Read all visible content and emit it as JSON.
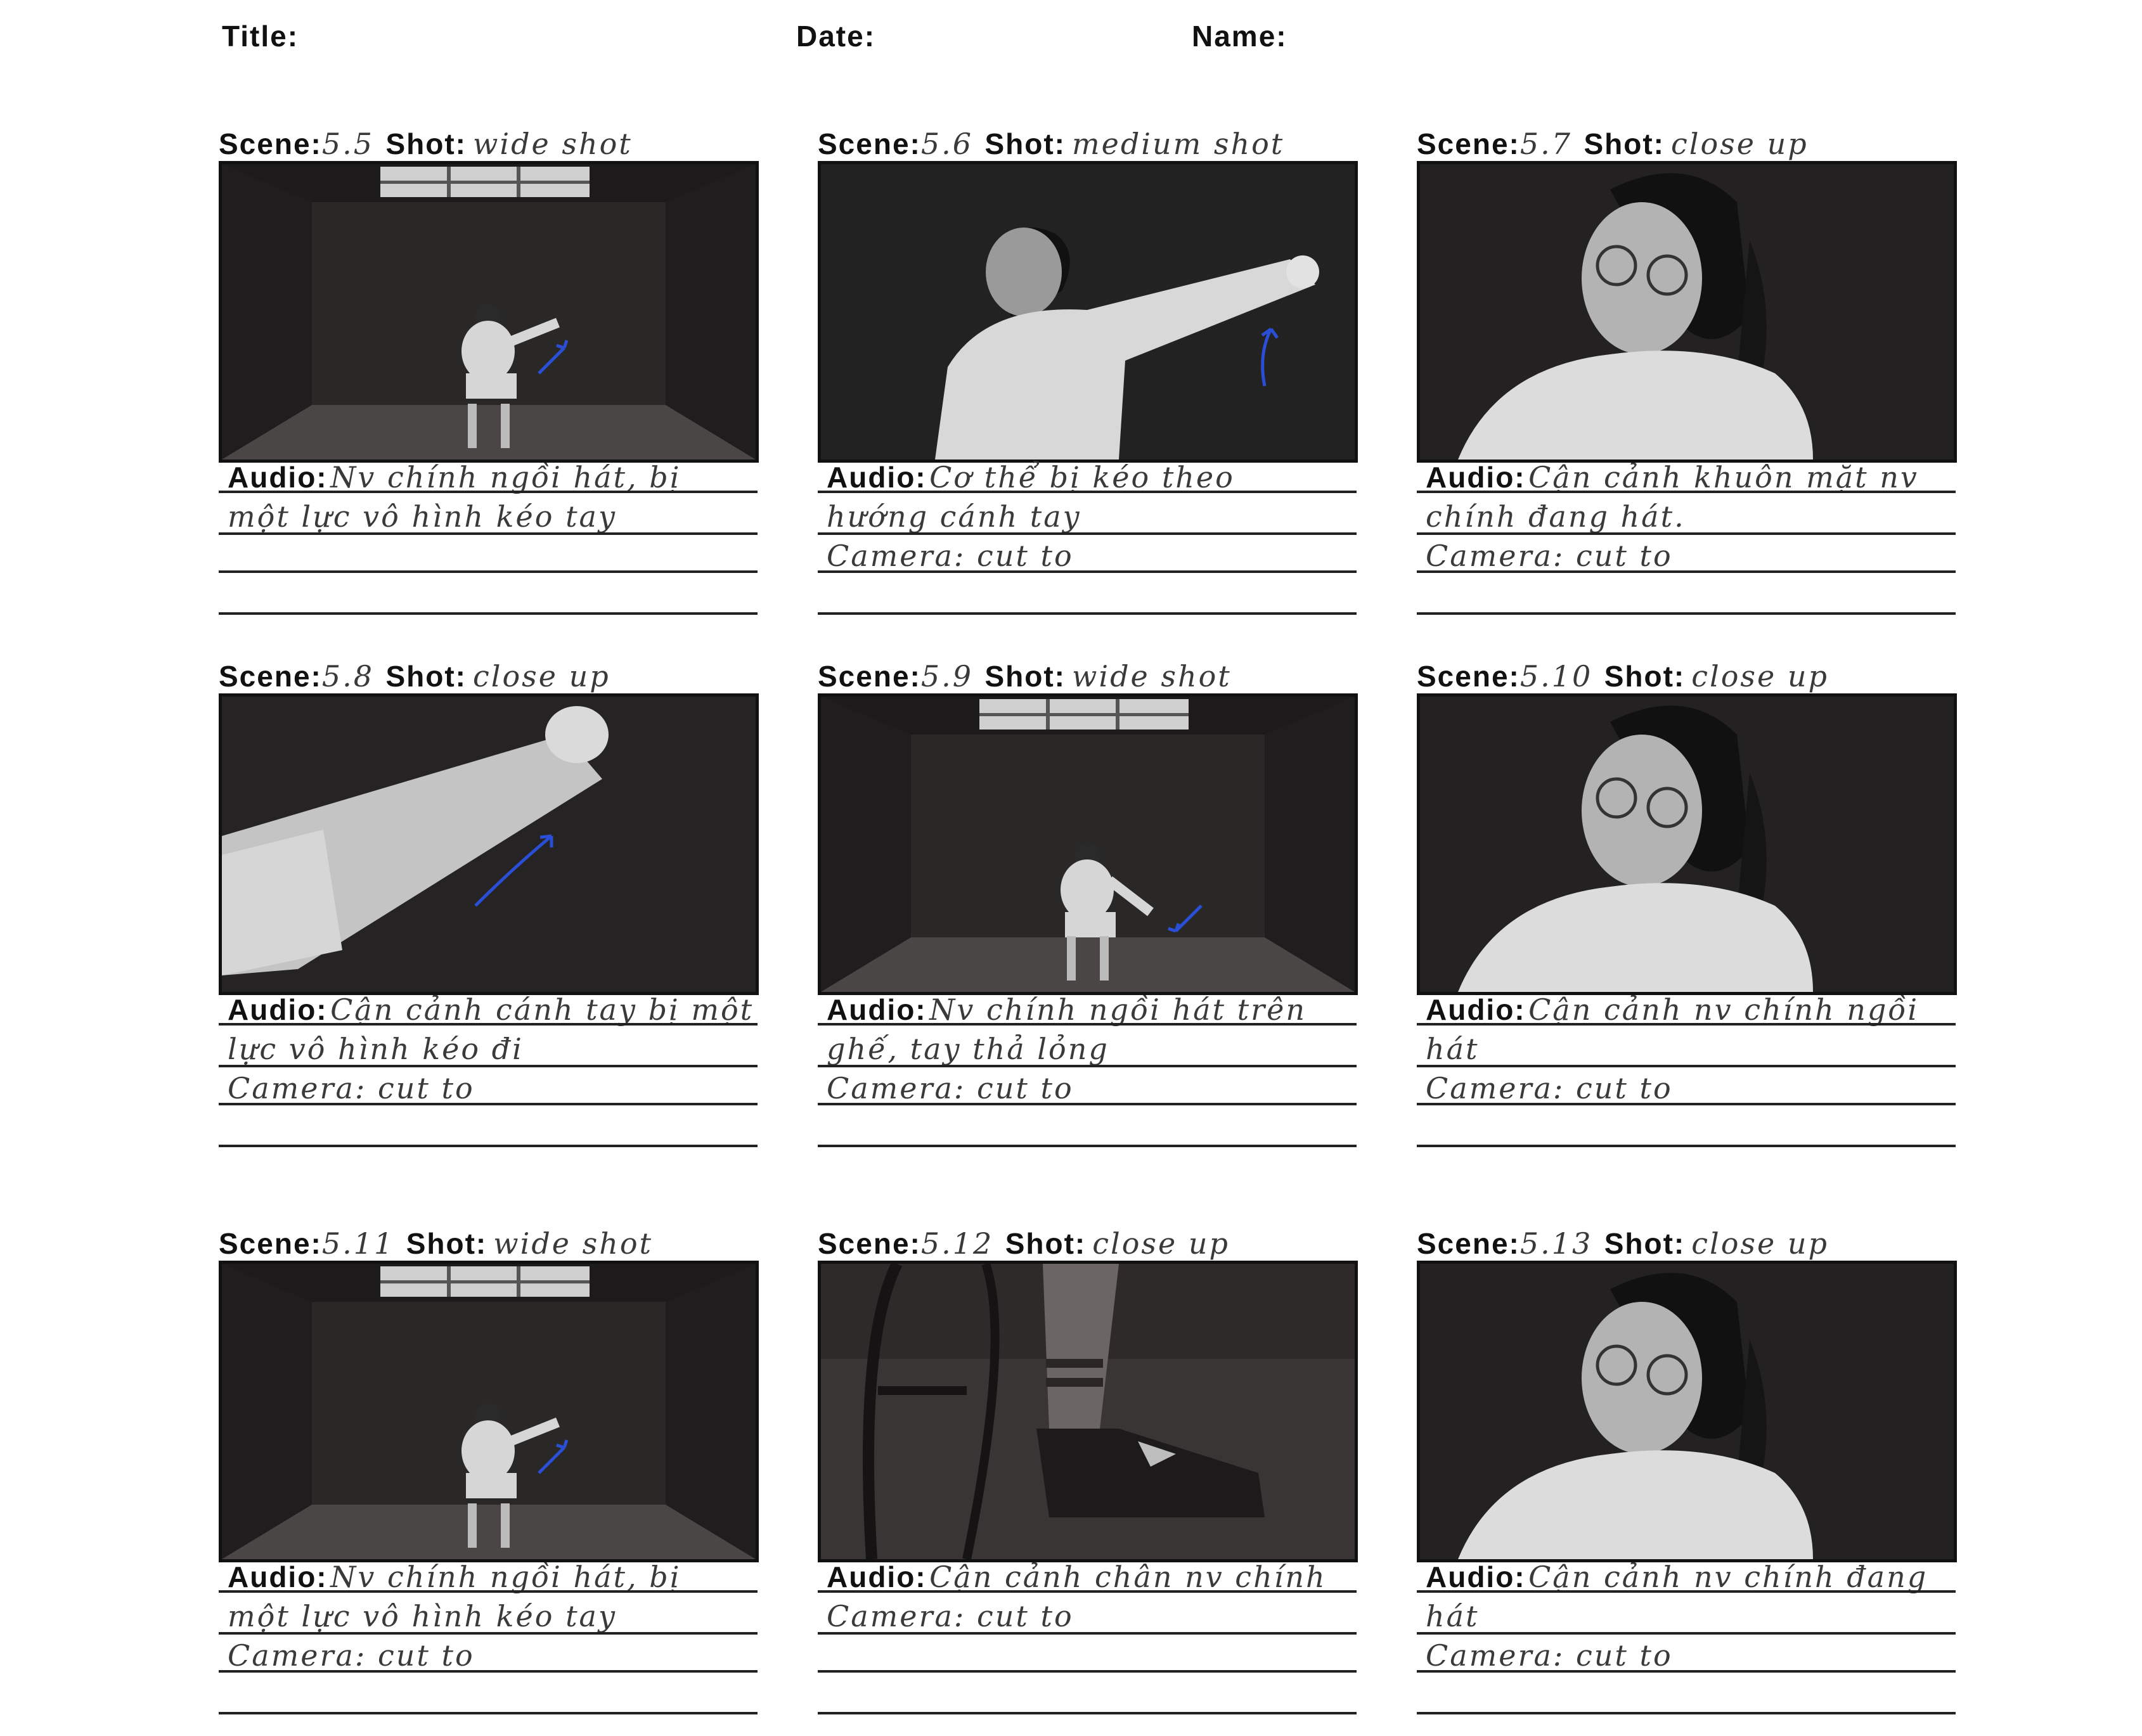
{
  "header": {
    "title_label": "Title:",
    "date_label": "Date:",
    "name_label": "Name:"
  },
  "labels": {
    "scene": "Scene:",
    "shot": "Shot:",
    "audio": "Audio:"
  },
  "panels": [
    {
      "scene": "5.5",
      "shot": "wide shot",
      "audio1": "Nv chính ngồi hát, bị",
      "line2": "một lực vô hình kéo tay",
      "line3": "",
      "image": "wide-room-figure-icon"
    },
    {
      "scene": "5.6",
      "shot": "medium shot",
      "audio1": "Cơ thể bị kéo theo",
      "line2": "hướng cánh tay",
      "line3": "Camera: cut to",
      "image": "medium-arm-reach-icon"
    },
    {
      "scene": "5.7",
      "shot": "close up",
      "audio1": "Cận cảnh khuôn mặt nv",
      "line2": "chính đang hát.",
      "line3": "Camera: cut to",
      "image": "face-closeup-icon"
    },
    {
      "scene": "5.8",
      "shot": "close up",
      "audio1": "Cận cảnh cánh tay bị một",
      "line2": "lực vô hình kéo đi",
      "line3": "Camera: cut to",
      "image": "arm-closeup-icon"
    },
    {
      "scene": "5.9",
      "shot": "wide shot",
      "audio1": "Nv chính ngồi hát trên",
      "line2": "ghế, tay thả lỏng",
      "line3": "Camera: cut to",
      "image": "wide-room-figure-icon"
    },
    {
      "scene": "5.10",
      "shot": "close up",
      "audio1": "Cận cảnh nv chính ngồi",
      "line2": "hát",
      "line3": "Camera: cut to",
      "image": "face-closeup-icon"
    },
    {
      "scene": "5.11",
      "shot": "wide shot",
      "audio1": "Nv chính ngồi hát, bị",
      "line2": "một lực vô hình kéo tay",
      "line3": "Camera: cut to",
      "image": "wide-room-figure-icon"
    },
    {
      "scene": "5.12",
      "shot": "close up",
      "audio1": "Cận cảnh chân nv chính",
      "line2": "Camera: cut to",
      "line3": "",
      "image": "feet-closeup-icon"
    },
    {
      "scene": "5.13",
      "shot": "close up",
      "audio1": "Cận cảnh nv chính đang",
      "line2": "hát",
      "line3": "Camera: cut to",
      "image": "face-closeup-icon"
    }
  ],
  "colors": {
    "frame_bg": "#262424",
    "arrow": "#2a4fd6",
    "figure": "#d9d9d9"
  }
}
